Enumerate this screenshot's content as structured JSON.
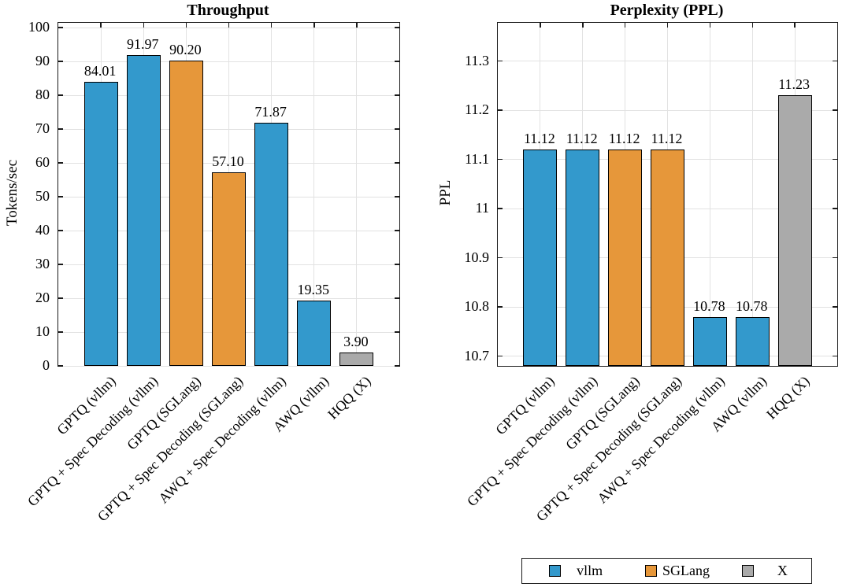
{
  "colors": {
    "vllm": "#3399CC",
    "SGLang": "#E6973A",
    "X": "#AAAAAA",
    "bar_border": "#000000",
    "axis": "#1a1a1a",
    "grid": "#e2e2e2"
  },
  "chart_data": [
    {
      "type": "bar",
      "title": "Throughput",
      "xlabel": "",
      "ylabel": "Tokens/sec",
      "categories": [
        "GPTQ (vllm)",
        "GPTQ + Spec Decoding (vllm)",
        "GPTQ (SGLang)",
        "GPTQ + Spec Decoding (SGLang)",
        "AWQ + Spec Decoding (vllm)",
        "AWQ (vllm)",
        "HQQ (X)"
      ],
      "values": [
        84.01,
        91.97,
        90.2,
        57.1,
        71.87,
        19.35,
        3.9
      ],
      "value_labels": [
        "84.01",
        "91.97",
        "90.20",
        "57.10",
        "71.87",
        "19.35",
        "3.90"
      ],
      "groups": [
        "vllm",
        "vllm",
        "SGLang",
        "SGLang",
        "vllm",
        "vllm",
        "X"
      ],
      "ylim": [
        0,
        101.4
      ],
      "yticks": [
        0,
        10,
        20,
        30,
        40,
        50,
        60,
        70,
        80,
        90,
        100
      ],
      "ytick_labels": [
        "0",
        "10",
        "20",
        "30",
        "40",
        "50",
        "60",
        "70",
        "80",
        "90",
        "100"
      ],
      "grid": true
    },
    {
      "type": "bar",
      "title": "Perplexity (PPL)",
      "xlabel": "",
      "ylabel": "PPL",
      "categories": [
        "GPTQ (vllm)",
        "GPTQ + Spec Decoding (vllm)",
        "GPTQ (SGLang)",
        "GPTQ + Spec Decoding (SGLang)",
        "AWQ + Spec Decoding (vllm)",
        "AWQ (vllm)",
        "HQQ (X)"
      ],
      "values": [
        11.12,
        11.12,
        11.12,
        11.12,
        10.78,
        10.78,
        11.23
      ],
      "value_labels": [
        "11.12",
        "11.12",
        "11.12",
        "11.12",
        "10.78",
        "10.78",
        "11.23"
      ],
      "groups": [
        "vllm",
        "vllm",
        "SGLang",
        "SGLang",
        "vllm",
        "vllm",
        "X"
      ],
      "ylim": [
        10.68,
        11.378
      ],
      "yticks": [
        10.7,
        10.8,
        10.9,
        11,
        11.1,
        11.2,
        11.3
      ],
      "ytick_labels": [
        "10.7",
        "10.8",
        "10.9",
        "11",
        "11.1",
        "11.2",
        "11.3"
      ],
      "grid": true
    }
  ],
  "legend": {
    "position": "bottom-right",
    "items": [
      {
        "label": "vllm",
        "color": "#3399CC"
      },
      {
        "label": "SGLang",
        "color": "#E6973A"
      },
      {
        "label": "X",
        "color": "#AAAAAA"
      }
    ]
  }
}
